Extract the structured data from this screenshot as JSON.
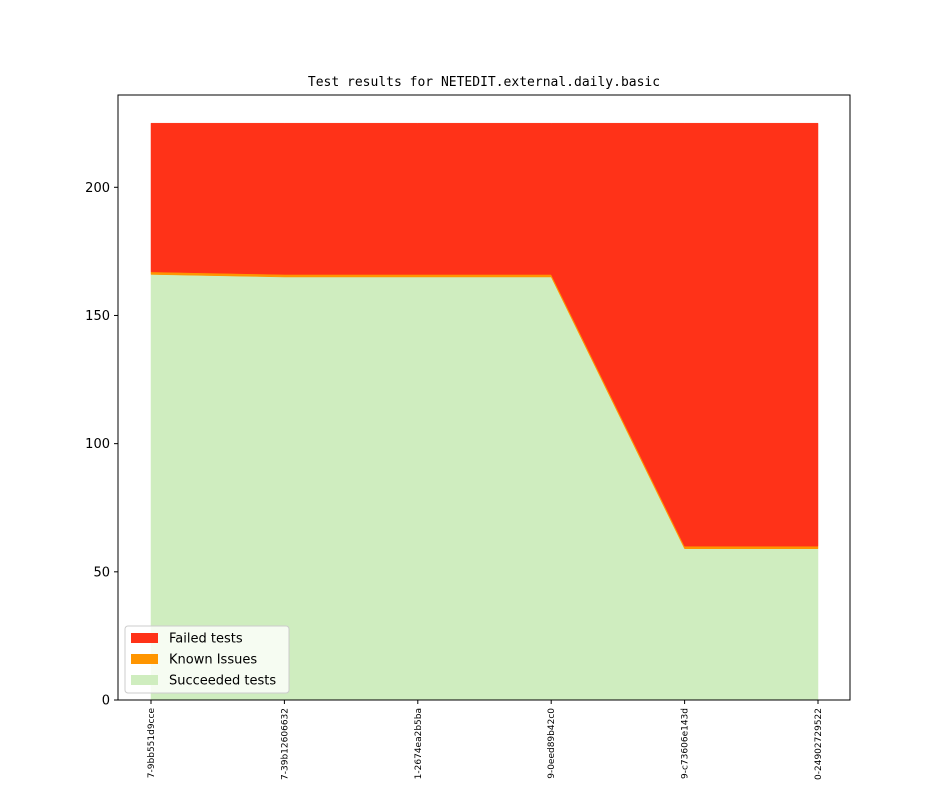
{
  "chart_data": {
    "type": "area",
    "stacked": true,
    "title": "Test results for NETEDIT.external.daily.basic",
    "xlabel": "",
    "ylabel": "",
    "categories": [
      "7-9bb551d9cce",
      "7-39b12606632",
      "1-2674ea2b5ba",
      "9-0eed89b42c0",
      "9-c73606e143d",
      "0-24902729522"
    ],
    "ylim": [
      0,
      236
    ],
    "yticks": [
      0,
      50,
      100,
      150,
      200
    ],
    "grid": false,
    "legend_position": "lower-left",
    "series": [
      {
        "name": "Succeeded tests",
        "color": "#cfedbf",
        "values": [
          166,
          165,
          165,
          165,
          59,
          59
        ]
      },
      {
        "name": "Known Issues",
        "color": "#ff9500",
        "values": [
          1,
          1,
          1,
          1,
          1,
          1
        ]
      },
      {
        "name": "Failed tests",
        "color": "#ff3218",
        "values": [
          58,
          59,
          59,
          59,
          165,
          165
        ]
      }
    ]
  }
}
